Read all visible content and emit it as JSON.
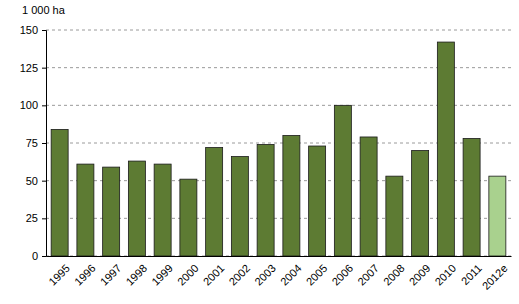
{
  "chart_data": {
    "type": "bar",
    "ylabel": "1 000 ha",
    "categories": [
      "1995",
      "1996",
      "1997",
      "1998",
      "1999",
      "2000",
      "2001",
      "2002",
      "2003",
      "2004",
      "2005",
      "2006",
      "2007",
      "2008",
      "2009",
      "2010",
      "2011",
      "2012e"
    ],
    "values": [
      84,
      61,
      59,
      63,
      61,
      51,
      72,
      66,
      74,
      80,
      73,
      100,
      79,
      53,
      70,
      142,
      78,
      53
    ],
    "colors": [
      "#5d7b33",
      "#5d7b33",
      "#5d7b33",
      "#5d7b33",
      "#5d7b33",
      "#5d7b33",
      "#5d7b33",
      "#5d7b33",
      "#5d7b33",
      "#5d7b33",
      "#5d7b33",
      "#5d7b33",
      "#5d7b33",
      "#5d7b33",
      "#5d7b33",
      "#5d7b33",
      "#5d7b33",
      "#a9d18e"
    ],
    "ylim": [
      0,
      150
    ],
    "yticks": [
      0,
      25,
      50,
      75,
      100,
      125,
      150
    ],
    "grid": true
  }
}
